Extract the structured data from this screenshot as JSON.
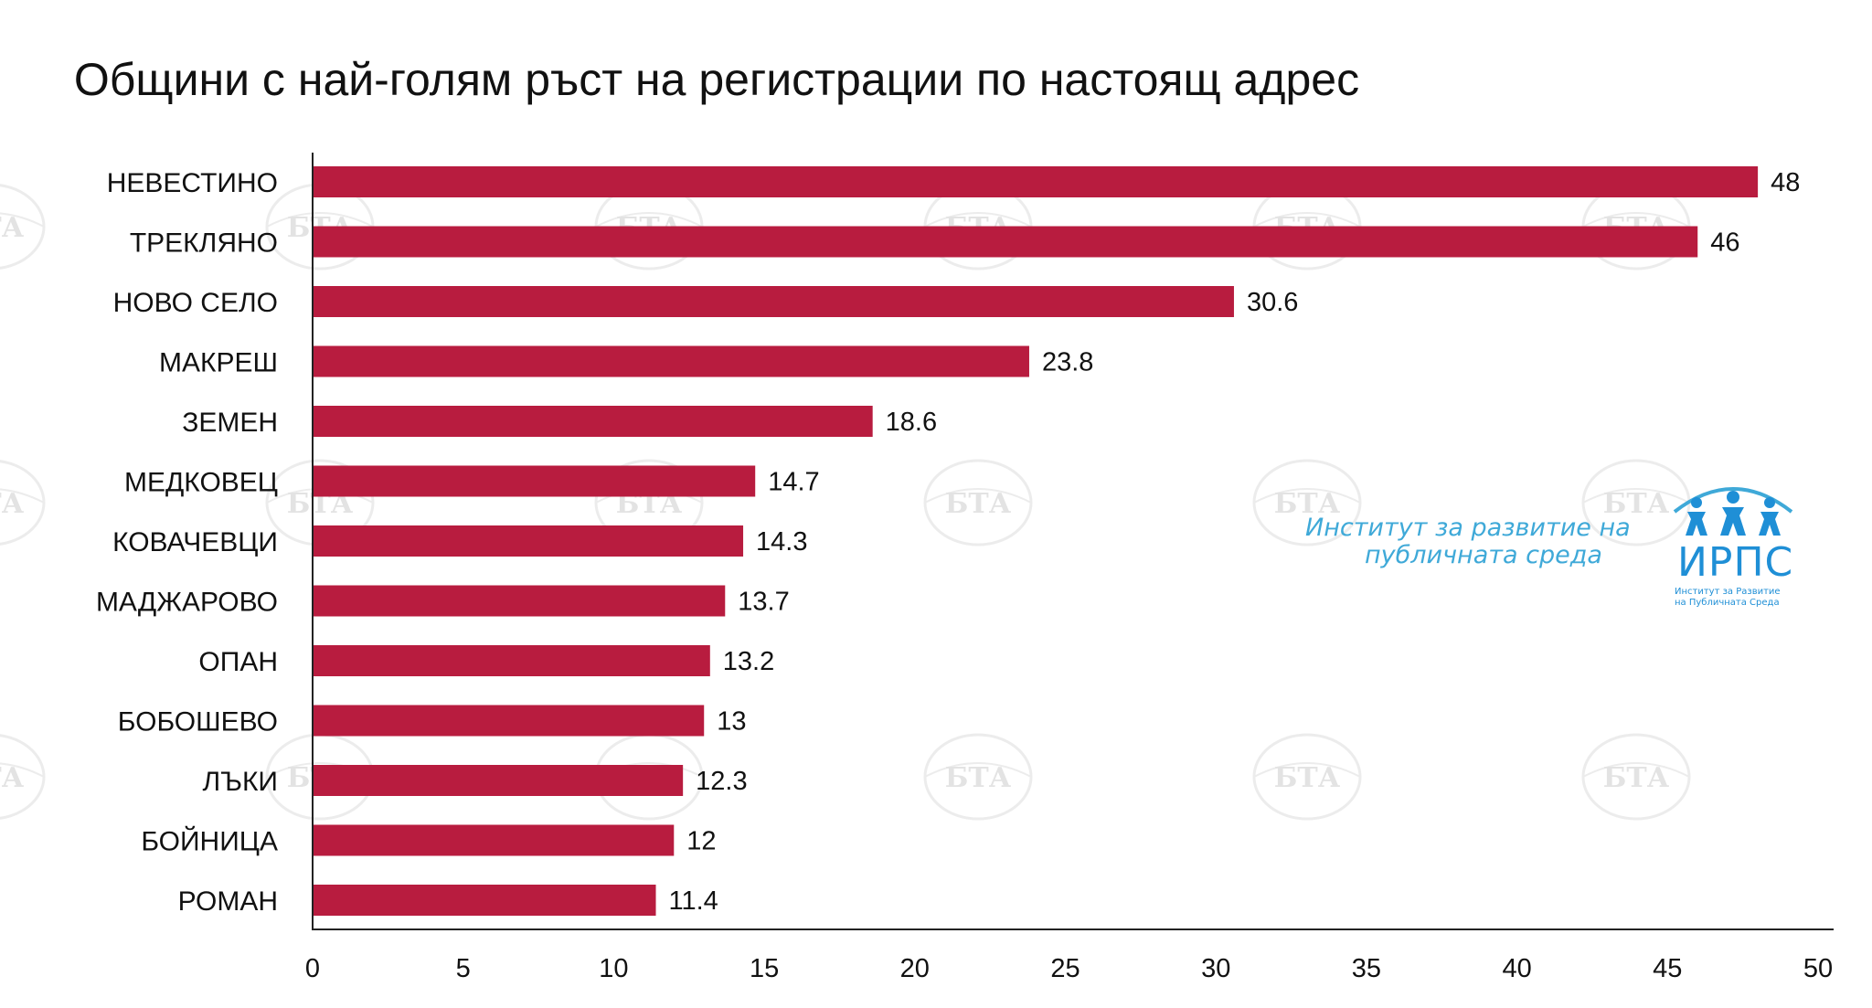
{
  "chart_data": {
    "type": "bar",
    "orientation": "horizontal",
    "title": "Общини с най-голям ръст на регистрации по настоящ адрес",
    "categories": [
      "НЕВЕСТИНО",
      "ТРЕКЛЯНО",
      "НОВО СЕЛО",
      "МАКРЕШ",
      "ЗЕМЕН",
      "МЕДКОВЕЦ",
      "КОВАЧЕВЦИ",
      "МАДЖАРОВО",
      "ОПАН",
      "БОБОШЕВО",
      "ЛЪКИ",
      "БОЙНИЦА",
      "РОМАН"
    ],
    "values": [
      48,
      46,
      30.6,
      23.8,
      18.6,
      14.7,
      14.3,
      13.7,
      13.2,
      13,
      12.3,
      12,
      11.4
    ],
    "value_labels": [
      "48",
      "46",
      "30.6",
      "23.8",
      "18.6",
      "14.7",
      "14.3",
      "13.7",
      "13.2",
      "13",
      "12.3",
      "12",
      "11.4"
    ],
    "xlim": [
      0,
      50
    ],
    "xticks": [
      "0",
      "5",
      "10",
      "15",
      "20",
      "25",
      "30",
      "35",
      "40",
      "45",
      "50"
    ],
    "xlabel": "",
    "ylabel": "",
    "grid": false,
    "legend": "none",
    "bar_color": "#b81c3f"
  },
  "watermark": {
    "text": "БТА"
  },
  "logo": {
    "name_line1": "Институт за развитие на",
    "name_line2": "публичната среда",
    "abbreviation": "ИРПС",
    "sub_line1": "Институт за Развитие",
    "sub_line2": "на Публичната Среда",
    "color": "#1f8fd6",
    "icon": "people-icon"
  }
}
